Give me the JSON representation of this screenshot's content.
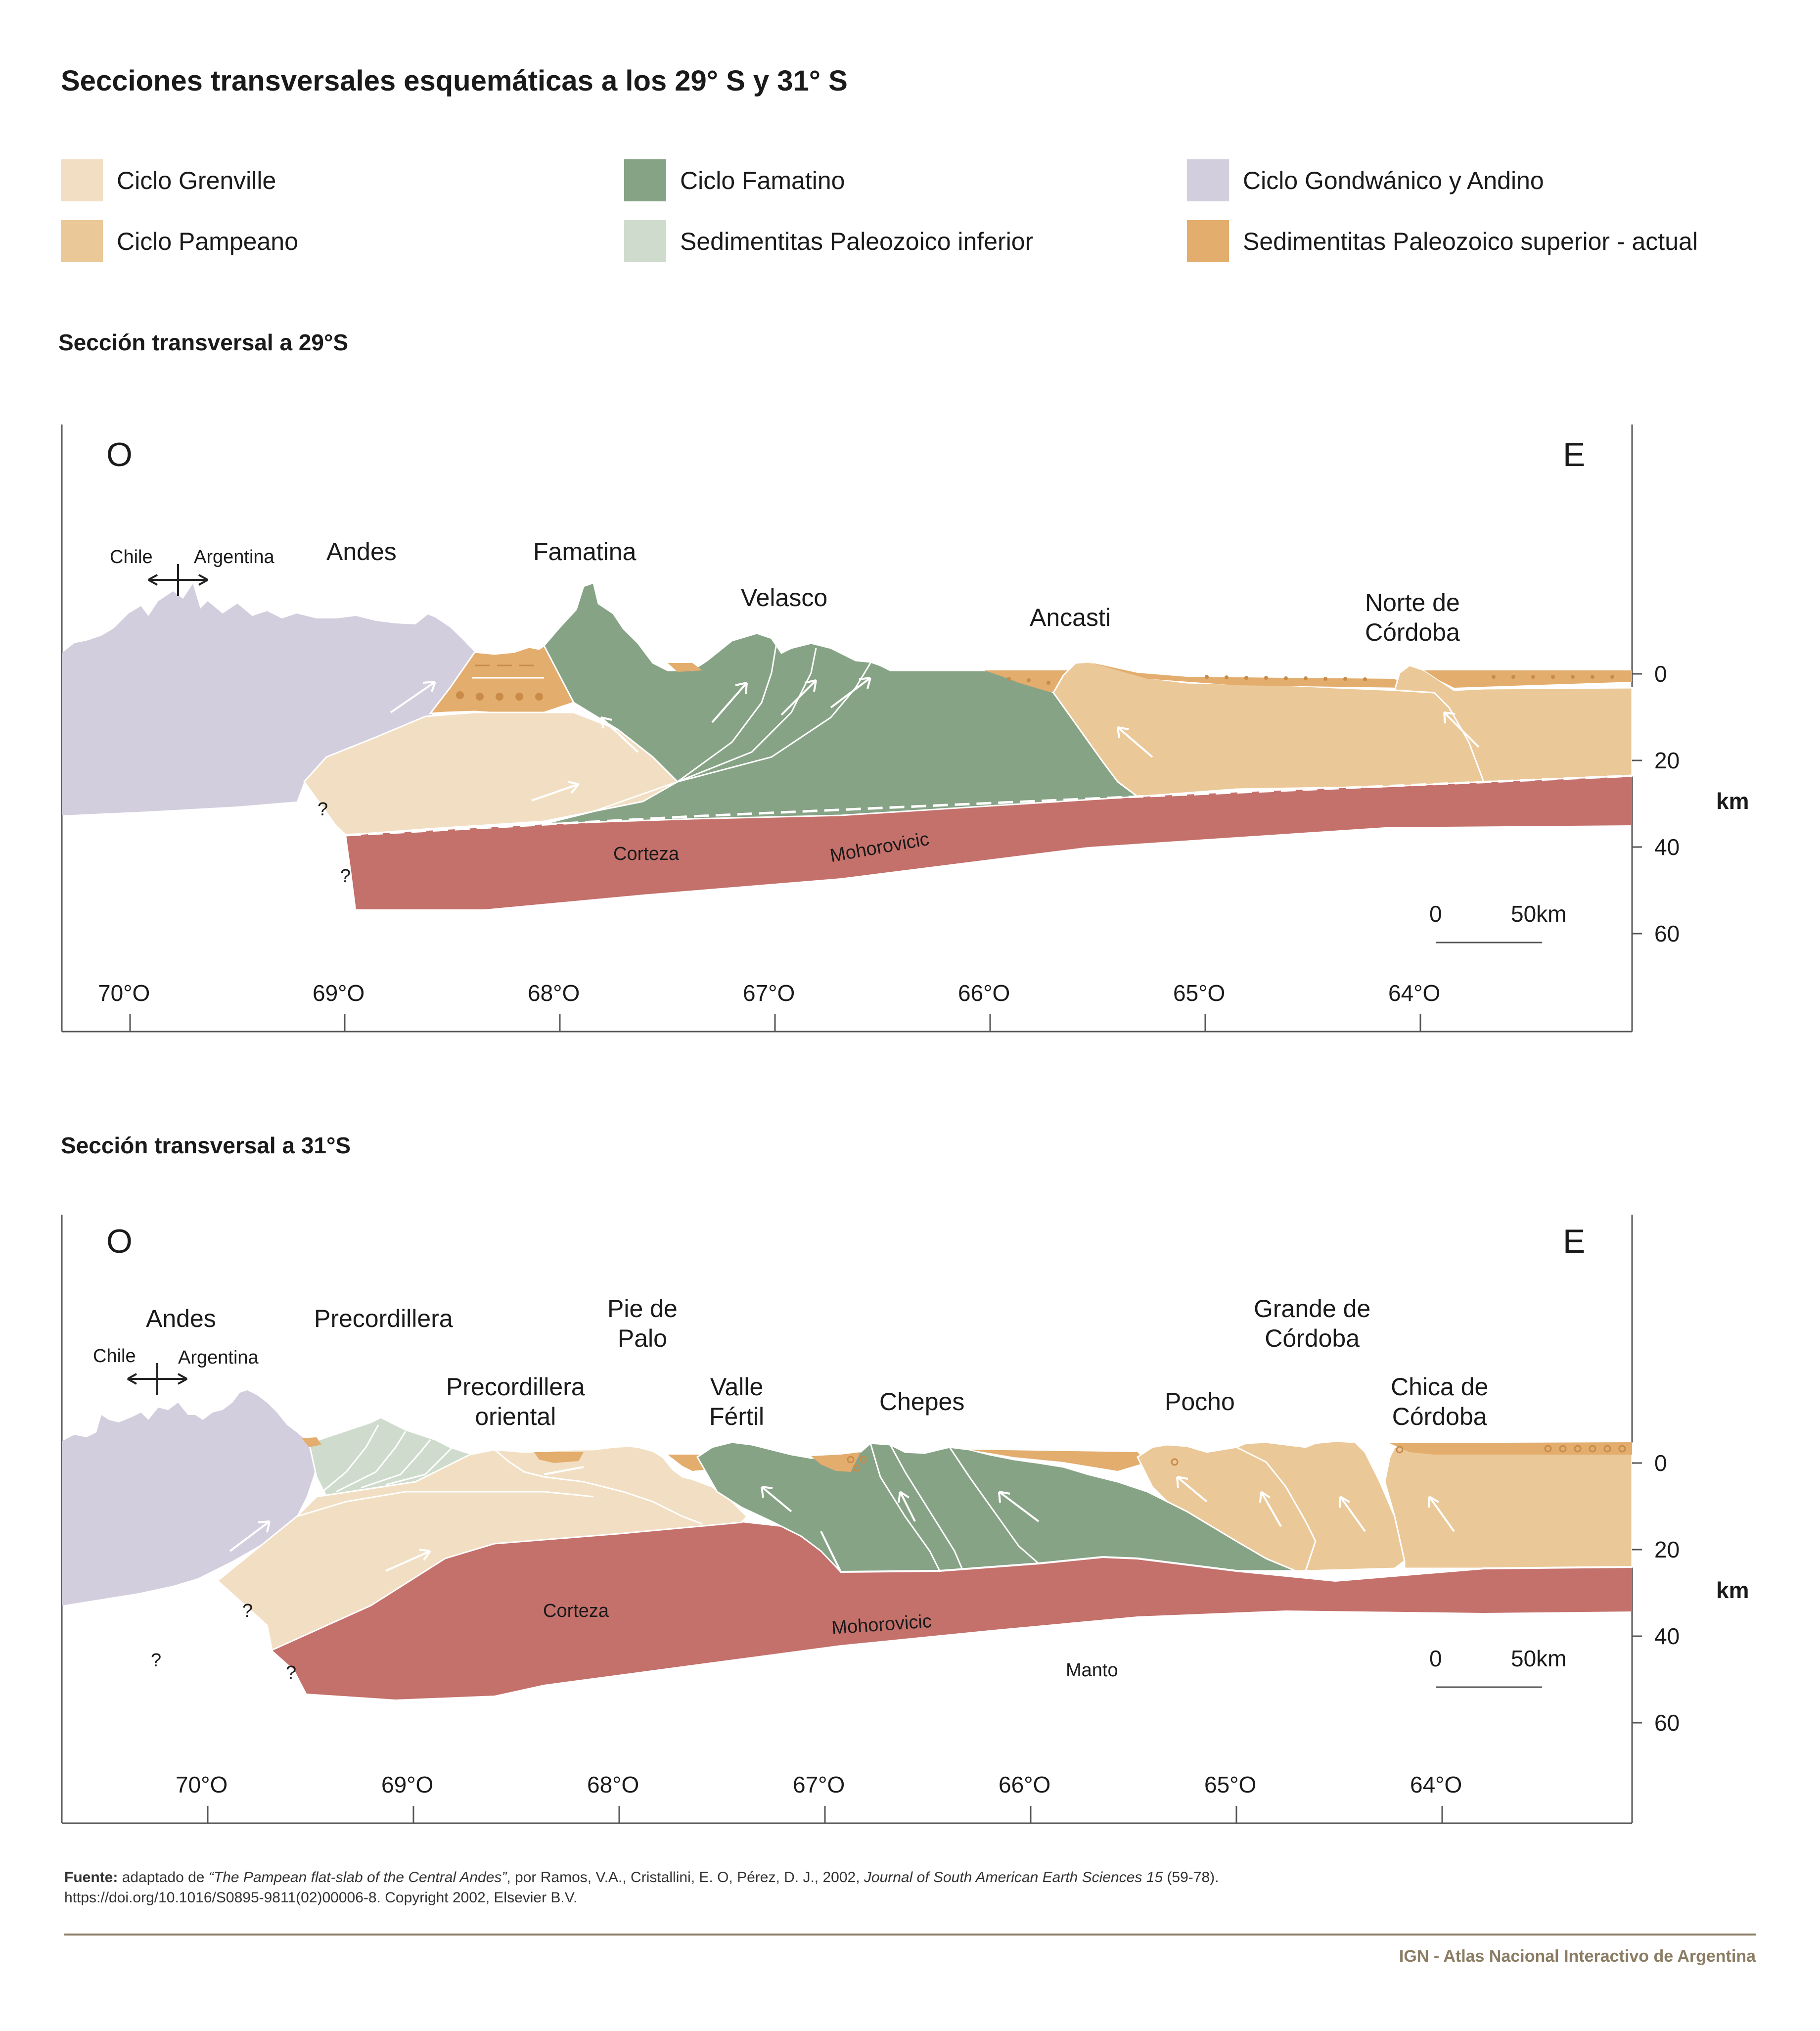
{
  "title": "Secciones transversales esquemáticas a los 29° S y 31° S",
  "colors": {
    "grenville": "#f2dfc3",
    "pampeano": "#ebc898",
    "famatino": "#87a386",
    "sed_inferior": "#cfdccd",
    "gondwanico": "#d3cede",
    "sed_superior": "#e3ad6e",
    "corteza": "#c4706b",
    "line": "#333333",
    "footer": "#8b7d63"
  },
  "legend": [
    {
      "label": "Ciclo Grenville",
      "color": "#f2dfc3"
    },
    {
      "label": "Ciclo Famatino",
      "color": "#87a386"
    },
    {
      "label": "Ciclo Gondwánico y Andino",
      "color": "#d3cede"
    },
    {
      "label": "Ciclo Pampeano",
      "color": "#ebc898"
    },
    {
      "label": "Sedimentitas Paleozoico inferior",
      "color": "#cfdccd"
    },
    {
      "label": "Sedimentitas Paleozoico superior - actual",
      "color": "#e3ad6e"
    }
  ],
  "section1": {
    "title": "Sección transversal a 29°S",
    "west": "O",
    "east": "E",
    "chile": "Chile",
    "argentina": "Argentina",
    "features": [
      "Andes",
      "Famatina",
      "Velasco",
      "Ancasti",
      "Norte de\nCórdoba"
    ],
    "corteza": "Corteza",
    "moho": "Mohorovicic",
    "question": "?",
    "longitudes": [
      "70°O",
      "69°O",
      "68°O",
      "67°O",
      "66°O",
      "65°O",
      "64°O"
    ],
    "depths": [
      "0",
      "20",
      "40",
      "60"
    ],
    "depth_unit": "km",
    "scale_zero": "0",
    "scale_label": "50km"
  },
  "section2": {
    "title": "Sección transversal a 31°S",
    "west": "O",
    "east": "E",
    "chile": "Chile",
    "argentina": "Argentina",
    "features": [
      "Andes",
      "Precordillera",
      "Pie de\nPalo",
      "Precordillera\noriental",
      "Valle\nFértil",
      "Chepes",
      "Pocho",
      "Grande de\nCórdoba",
      "Chica de\nCórdoba"
    ],
    "corteza": "Corteza",
    "moho": "Mohorovicic",
    "manto": "Manto",
    "question": "?",
    "longitudes": [
      "70°O",
      "69°O",
      "68°O",
      "67°O",
      "66°O",
      "65°O",
      "64°O"
    ],
    "depths": [
      "0",
      "20",
      "40",
      "60"
    ],
    "depth_unit": "km",
    "scale_zero": "0",
    "scale_label": "50km"
  },
  "footer": {
    "source_label": "Fuente:",
    "source_pre": " adaptado de ",
    "source_title": "“The Pampean flat-slab of the Central Andes”",
    "source_mid": ", por Ramos, V.A., Cristallini, E. O, Pérez, D. J., 2002, ",
    "source_journal": "Journal of South American Earth Sciences 15",
    "source_end": " (59-78).",
    "doi": "https://doi.org/10.1016/S0895-9811(02)00006-8. Copyright 2002, Elsevier B.V.",
    "ign": "IGN - Atlas Nacional Interactivo de Argentina"
  }
}
